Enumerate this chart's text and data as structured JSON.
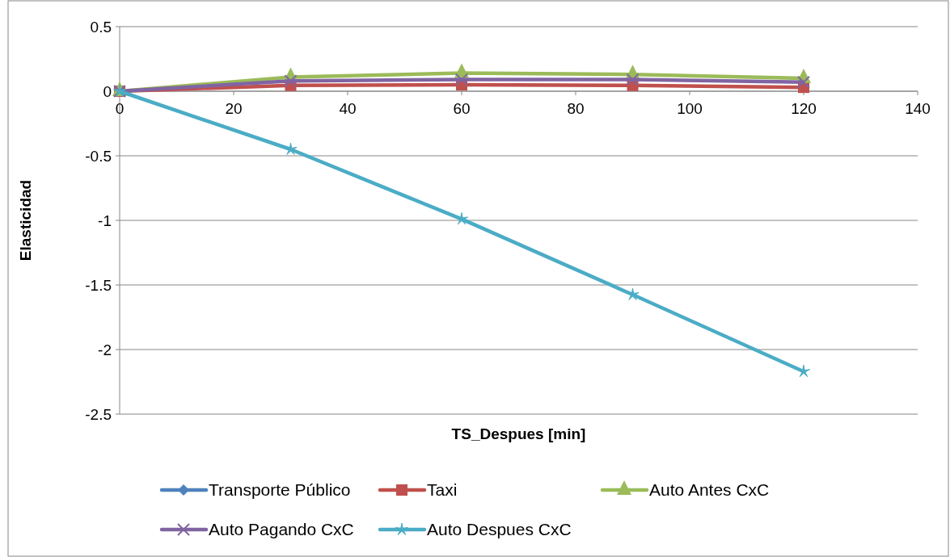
{
  "chart_data": {
    "type": "line",
    "xlabel": "TS_Despues [min]",
    "ylabel": "Elasticidad",
    "x": [
      0,
      30,
      60,
      90,
      120
    ],
    "xlim": [
      0,
      140
    ],
    "xticks": [
      0,
      20,
      40,
      60,
      80,
      100,
      120,
      140
    ],
    "ylim": [
      -2.5,
      0.5
    ],
    "yticks": [
      -2.5,
      -2,
      -1.5,
      -1,
      -0.5,
      0,
      0.5
    ],
    "grid": "y",
    "legend": "bottom",
    "series": [
      {
        "name": "Transporte Público",
        "color": "#4f81bd",
        "marker": "diamond",
        "values": [
          null,
          null,
          null,
          null,
          null
        ]
      },
      {
        "name": "Taxi",
        "color": "#c0504d",
        "marker": "square",
        "values": [
          0,
          0.045,
          0.05,
          0.045,
          0.03
        ]
      },
      {
        "name": "Auto Antes CxC",
        "color": "#9bbb59",
        "marker": "triangle",
        "values": [
          0,
          0.11,
          0.14,
          0.13,
          0.1
        ]
      },
      {
        "name": "Auto Pagando CxC",
        "color": "#8064a2",
        "marker": "cross",
        "values": [
          0,
          0.08,
          0.09,
          0.09,
          0.07
        ]
      },
      {
        "name": "Auto Despues CxC",
        "color": "#4bacc6",
        "marker": "star",
        "values": [
          0,
          -0.45,
          -0.99,
          -1.575,
          -2.17
        ]
      }
    ]
  }
}
